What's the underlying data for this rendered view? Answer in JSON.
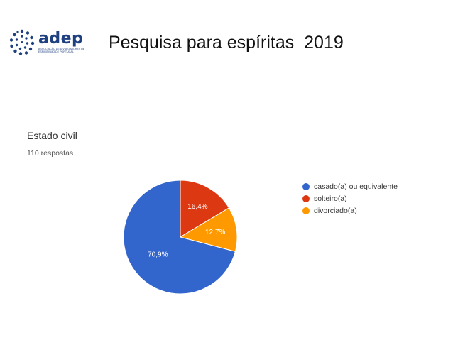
{
  "logo": {
    "name": "adep",
    "subtitle": "ASSOCIAÇÃO DE DIVULGADORES DE ESPIRITISMO DE PORTUGAL",
    "color": "#1e3f80"
  },
  "slide": {
    "title": "Pesquisa para espíritas  2019"
  },
  "chart_data": {
    "type": "pie",
    "title": "Estado civil",
    "subtitle": "110 respostas",
    "categories": [
      "casado(a) ou equivalente",
      "solteiro(a)",
      "divorciado(a)"
    ],
    "values": [
      70.9,
      16.4,
      12.7
    ],
    "labels": [
      "70,9%",
      "16,4%",
      "12,7%"
    ],
    "colors": [
      "#3366cc",
      "#dc3912",
      "#ff9900"
    ],
    "legend_position": "right"
  }
}
